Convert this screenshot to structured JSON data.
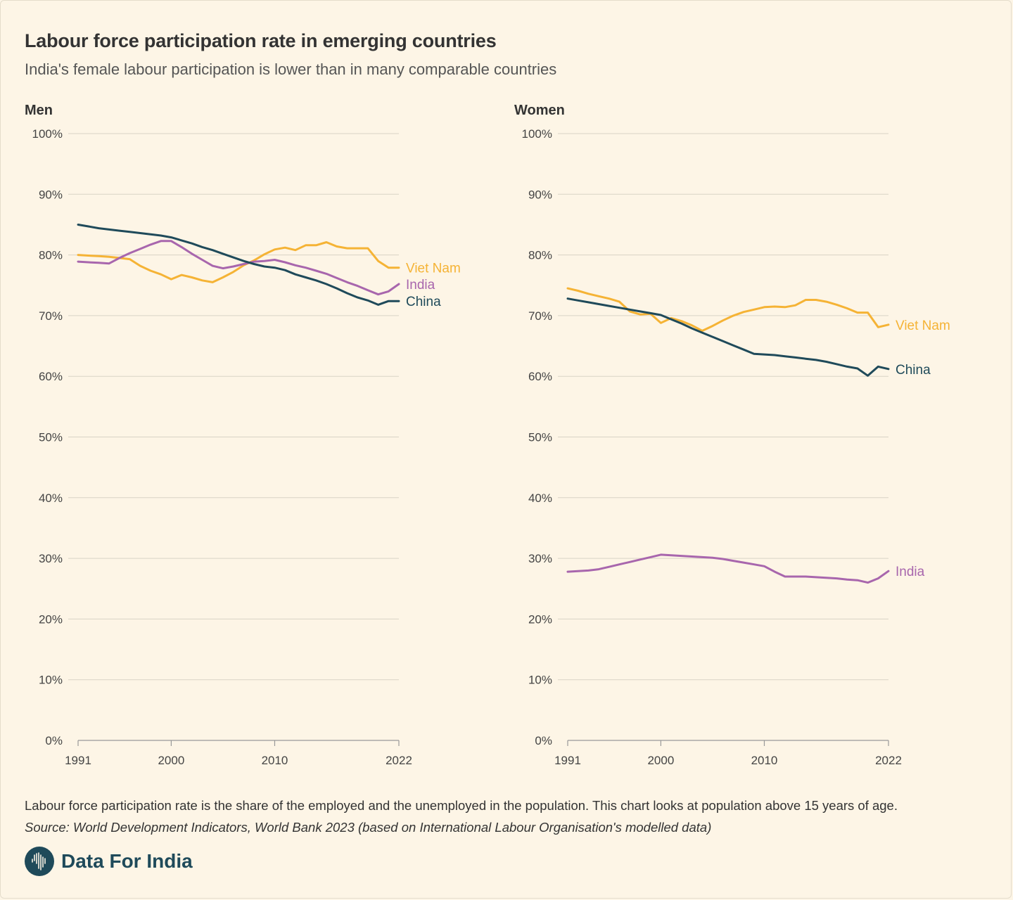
{
  "title": "Labour force participation rate in emerging countries",
  "subtitle": "India's female labour participation is lower than in many comparable countries",
  "footnote": "Labour force participation rate is the share of the employed and the unemployed in the population. This chart looks at population above 15 years of age.",
  "source": "Source: World Development Indicators, World Bank 2023 (based on International Labour Organisation's modelled data)",
  "brand": {
    "name": "Data For India",
    "icon": "india-map-icon"
  },
  "colors": {
    "viet_nam": "#f5b335",
    "india": "#a866ad",
    "china": "#1f4a5a",
    "background": "#fdf5e6"
  },
  "chart_data": [
    {
      "type": "line",
      "title": "Men",
      "xlabel": "",
      "ylabel": "",
      "xlim": [
        1991,
        2022
      ],
      "ylim": [
        0,
        100
      ],
      "x_ticks": [
        1991,
        2000,
        2010,
        2022
      ],
      "y_ticks": [
        0,
        10,
        20,
        30,
        40,
        50,
        60,
        70,
        80,
        90,
        100
      ],
      "y_tick_labels": [
        "0%",
        "10%",
        "20%",
        "30%",
        "40%",
        "50%",
        "60%",
        "70%",
        "80%",
        "90%",
        "100%"
      ],
      "x": [
        1991,
        1992,
        1993,
        1994,
        1995,
        1996,
        1997,
        1998,
        1999,
        2000,
        2001,
        2002,
        2003,
        2004,
        2005,
        2006,
        2007,
        2008,
        2009,
        2010,
        2011,
        2012,
        2013,
        2014,
        2015,
        2016,
        2017,
        2018,
        2019,
        2020,
        2021,
        2022
      ],
      "series": [
        {
          "name": "Viet Nam",
          "label": "Viet Nam",
          "color": "#f5b335",
          "values": [
            80.0,
            79.9,
            79.8,
            79.7,
            79.5,
            79.3,
            78.2,
            77.4,
            76.8,
            76.0,
            76.7,
            76.3,
            75.8,
            75.5,
            76.3,
            77.2,
            78.3,
            79.1,
            80.1,
            80.9,
            81.2,
            80.8,
            81.6,
            81.6,
            82.1,
            81.4,
            81.1,
            81.1,
            81.1,
            79.0,
            77.9,
            77.9
          ]
        },
        {
          "name": "India",
          "label": "India",
          "color": "#a866ad",
          "values": [
            78.9,
            78.8,
            78.7,
            78.6,
            79.5,
            80.3,
            81.0,
            81.7,
            82.3,
            82.3,
            81.3,
            80.2,
            79.2,
            78.2,
            77.8,
            78.1,
            78.5,
            78.9,
            79.0,
            79.2,
            78.8,
            78.3,
            77.9,
            77.4,
            76.9,
            76.2,
            75.5,
            74.9,
            74.2,
            73.5,
            74.0,
            75.2
          ]
        },
        {
          "name": "China",
          "label": "China",
          "color": "#1f4a5a",
          "values": [
            85.0,
            84.7,
            84.4,
            84.2,
            84.0,
            83.8,
            83.6,
            83.4,
            83.2,
            82.9,
            82.4,
            81.9,
            81.3,
            80.8,
            80.2,
            79.6,
            79.0,
            78.5,
            78.1,
            77.9,
            77.5,
            76.8,
            76.3,
            75.8,
            75.2,
            74.5,
            73.7,
            73.0,
            72.5,
            71.8,
            72.4,
            72.4
          ]
        }
      ]
    },
    {
      "type": "line",
      "title": "Women",
      "xlabel": "",
      "ylabel": "",
      "xlim": [
        1991,
        2022
      ],
      "ylim": [
        0,
        100
      ],
      "x_ticks": [
        1991,
        2000,
        2010,
        2022
      ],
      "y_ticks": [
        0,
        10,
        20,
        30,
        40,
        50,
        60,
        70,
        80,
        90,
        100
      ],
      "y_tick_labels": [
        "0%",
        "10%",
        "20%",
        "30%",
        "40%",
        "50%",
        "60%",
        "70%",
        "80%",
        "90%",
        "100%"
      ],
      "x": [
        1991,
        1992,
        1993,
        1994,
        1995,
        1996,
        1997,
        1998,
        1999,
        2000,
        2001,
        2002,
        2003,
        2004,
        2005,
        2006,
        2007,
        2008,
        2009,
        2010,
        2011,
        2012,
        2013,
        2014,
        2015,
        2016,
        2017,
        2018,
        2019,
        2020,
        2021,
        2022
      ],
      "series": [
        {
          "name": "Viet Nam",
          "label": "Viet Nam",
          "color": "#f5b335",
          "values": [
            74.5,
            74.1,
            73.6,
            73.2,
            72.8,
            72.3,
            70.7,
            70.2,
            70.3,
            68.8,
            69.6,
            69.1,
            68.4,
            67.5,
            68.3,
            69.2,
            70.0,
            70.6,
            71.0,
            71.4,
            71.5,
            71.4,
            71.7,
            72.6,
            72.6,
            72.3,
            71.8,
            71.2,
            70.5,
            70.5,
            68.1,
            68.5
          ]
        },
        {
          "name": "China",
          "label": "China",
          "color": "#1f4a5a",
          "values": [
            72.8,
            72.5,
            72.2,
            71.9,
            71.6,
            71.3,
            71.0,
            70.7,
            70.4,
            70.1,
            69.4,
            68.7,
            67.9,
            67.2,
            66.5,
            65.8,
            65.1,
            64.4,
            63.7,
            63.6,
            63.5,
            63.3,
            63.1,
            62.9,
            62.7,
            62.4,
            62.0,
            61.6,
            61.3,
            60.1,
            61.6,
            61.2
          ]
        },
        {
          "name": "India",
          "label": "India",
          "color": "#a866ad",
          "values": [
            27.8,
            27.9,
            28.0,
            28.2,
            28.6,
            29.0,
            29.4,
            29.8,
            30.2,
            30.6,
            30.5,
            30.4,
            30.3,
            30.2,
            30.1,
            29.9,
            29.6,
            29.3,
            29.0,
            28.7,
            27.8,
            27.0,
            27.0,
            27.0,
            26.9,
            26.8,
            26.7,
            26.5,
            26.4,
            26.0,
            26.7,
            27.9
          ]
        }
      ]
    }
  ]
}
